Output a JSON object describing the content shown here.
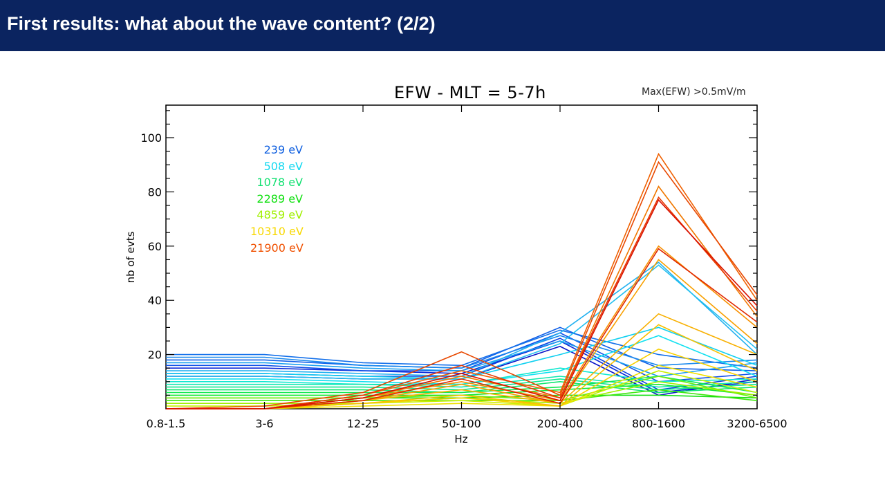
{
  "slide": {
    "title": "First results: what about the wave content? (2/2)"
  },
  "chart_data": {
    "type": "line",
    "title": "EFW - MLT = 5-7h",
    "annotation": "Max(EFW) >0.5mV/m",
    "xlabel": "Hz",
    "ylabel": "nb of evts",
    "categories": [
      "0.8-1.5",
      "3-6",
      "12-25",
      "50-100",
      "200-400",
      "800-1600",
      "3200-6500"
    ],
    "yticks": [
      20,
      40,
      60,
      80,
      100
    ],
    "ylim": [
      0,
      112
    ],
    "grid": false,
    "legend_position": "top-left",
    "legend": [
      {
        "label": "239 eV",
        "color": "#1060e0"
      },
      {
        "label": "508 eV",
        "color": "#10d8f0"
      },
      {
        "label": "1078 eV",
        "color": "#10e070"
      },
      {
        "label": "2289 eV",
        "color": "#10e010"
      },
      {
        "label": "4859 eV",
        "color": "#a0f000"
      },
      {
        "label": "10310 eV",
        "color": "#f8d800"
      },
      {
        "label": "21900 eV",
        "color": "#f05000"
      }
    ],
    "series": [
      {
        "color": "#0a14c8",
        "values": [
          12,
          12,
          11,
          11,
          23,
          5,
          11
        ]
      },
      {
        "color": "#0a28d8",
        "values": [
          15,
          15,
          14,
          13,
          25,
          6,
          10
        ]
      },
      {
        "color": "#0a40e0",
        "values": [
          13,
          13,
          12,
          12,
          26,
          7,
          12
        ]
      },
      {
        "color": "#1050e8",
        "values": [
          16,
          16,
          14,
          14,
          28,
          10,
          13
        ]
      },
      {
        "color": "#1060e8",
        "values": [
          18,
          18,
          16,
          15,
          30,
          15,
          14
        ]
      },
      {
        "color": "#1470ea",
        "values": [
          20,
          20,
          17,
          16,
          29,
          20,
          15
        ]
      },
      {
        "color": "#1888ee",
        "values": [
          19,
          19,
          16,
          15,
          27,
          16,
          18
        ]
      },
      {
        "color": "#1ca0f0",
        "values": [
          17,
          17,
          15,
          14,
          25,
          12,
          17
        ]
      },
      {
        "color": "#20b0f0",
        "values": [
          14,
          14,
          13,
          12,
          28,
          54,
          20
        ]
      },
      {
        "color": "#22c0f0",
        "values": [
          12,
          12,
          11,
          11,
          24,
          53,
          22
        ]
      },
      {
        "color": "#10d0f0",
        "values": [
          13,
          13,
          12,
          11,
          20,
          30,
          16
        ]
      },
      {
        "color": "#10e0f0",
        "values": [
          11,
          11,
          10,
          9,
          14,
          27,
          12
        ]
      },
      {
        "color": "#10e8d0",
        "values": [
          10,
          10,
          9,
          9,
          15,
          10,
          11
        ]
      },
      {
        "color": "#10e8b0",
        "values": [
          9,
          9,
          9,
          8,
          12,
          8,
          10
        ]
      },
      {
        "color": "#10e890",
        "values": [
          8,
          8,
          8,
          7,
          11,
          7,
          9
        ]
      },
      {
        "color": "#10e870",
        "values": [
          7,
          7,
          7,
          6,
          10,
          6,
          8
        ]
      },
      {
        "color": "#10e850",
        "values": [
          6,
          6,
          6,
          6,
          8,
          12,
          6
        ]
      },
      {
        "color": "#10e830",
        "values": [
          5,
          5,
          5,
          5,
          7,
          9,
          5
        ]
      },
      {
        "color": "#10e010",
        "values": [
          4,
          4,
          4,
          4,
          5,
          5,
          4
        ]
      },
      {
        "color": "#40e810",
        "values": [
          3,
          3,
          3,
          3,
          3,
          7,
          3
        ]
      },
      {
        "color": "#70ee10",
        "values": [
          4,
          4,
          4,
          5,
          3,
          12,
          4
        ]
      },
      {
        "color": "#a0f000",
        "values": [
          2,
          2,
          2,
          4,
          2,
          10,
          5
        ]
      },
      {
        "color": "#c8f000",
        "values": [
          1,
          1,
          2,
          3,
          1,
          14,
          6
        ]
      },
      {
        "color": "#f0e000",
        "values": [
          0,
          0,
          1,
          2,
          1,
          16,
          8
        ]
      },
      {
        "color": "#f8d000",
        "values": [
          0,
          0,
          2,
          4,
          1,
          22,
          10
        ]
      },
      {
        "color": "#f8c000",
        "values": [
          0,
          0,
          2,
          5,
          1,
          31,
          14
        ]
      },
      {
        "color": "#f8b000",
        "values": [
          0,
          0,
          3,
          7,
          2,
          35,
          20
        ]
      },
      {
        "color": "#f8a000",
        "values": [
          0,
          0,
          3,
          9,
          2,
          55,
          24
        ]
      },
      {
        "color": "#f89000",
        "values": [
          0,
          0,
          4,
          10,
          3,
          60,
          30
        ]
      },
      {
        "color": "#f07800",
        "values": [
          0,
          0,
          4,
          12,
          4,
          82,
          34
        ]
      },
      {
        "color": "#f06000",
        "values": [
          0,
          0,
          5,
          14,
          6,
          94,
          40
        ]
      },
      {
        "color": "#e84800",
        "values": [
          0,
          1,
          6,
          21,
          5,
          91,
          42
        ]
      },
      {
        "color": "#e83800",
        "values": [
          0,
          0,
          5,
          16,
          4,
          78,
          36
        ]
      },
      {
        "color": "#e02800",
        "values": [
          0,
          0,
          3,
          11,
          2,
          59,
          32
        ]
      },
      {
        "color": "#d81000",
        "values": [
          0,
          0,
          4,
          13,
          3,
          77,
          38
        ]
      }
    ]
  }
}
